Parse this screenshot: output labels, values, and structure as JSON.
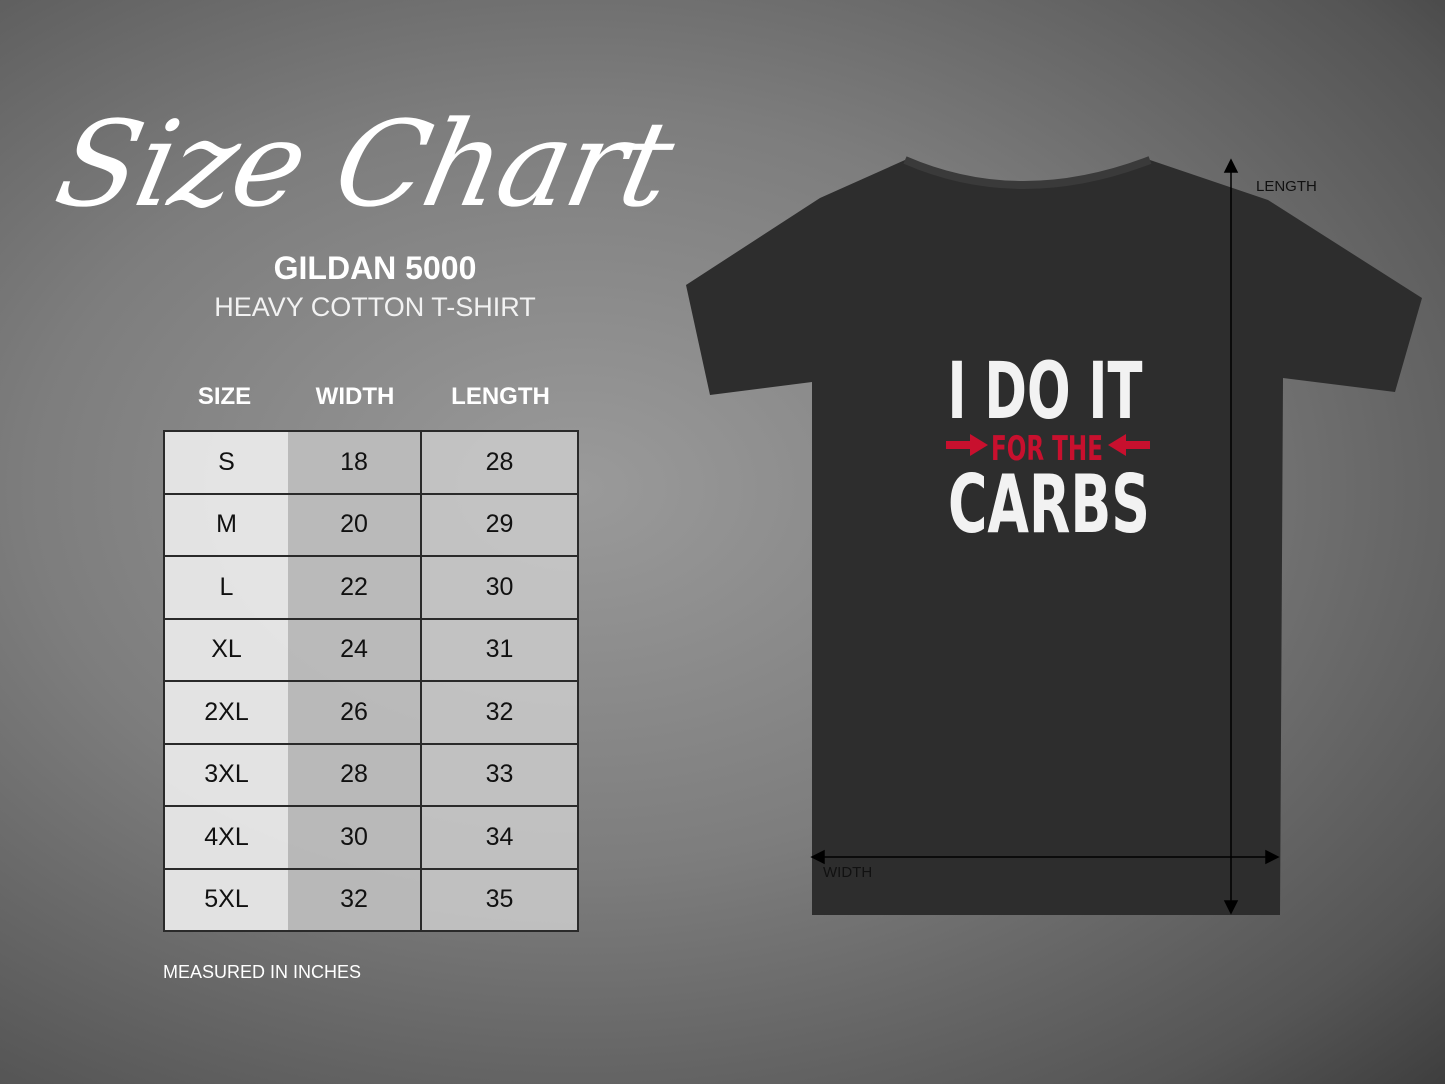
{
  "title": "Size Chart",
  "product": {
    "brand_model": "GILDAN 5000",
    "description": "HEAVY COTTON T-SHIRT"
  },
  "table": {
    "headers": [
      "SIZE",
      "WIDTH",
      "LENGTH"
    ],
    "rows": [
      [
        "S",
        "18",
        "28"
      ],
      [
        "M",
        "20",
        "29"
      ],
      [
        "L",
        "22",
        "30"
      ],
      [
        "XL",
        "24",
        "31"
      ],
      [
        "2XL",
        "26",
        "32"
      ],
      [
        "3XL",
        "28",
        "33"
      ],
      [
        "4XL",
        "30",
        "34"
      ],
      [
        "5XL",
        "32",
        "35"
      ]
    ]
  },
  "note": "MEASURED IN INCHES",
  "shirt": {
    "print_line1": "I DO IT",
    "print_line2": "FOR THE",
    "print_line3": "CARBS",
    "color": "#2d2d2d",
    "accent": "#c8102e"
  },
  "dimension_labels": {
    "length": "LENGTH",
    "width": "WIDTH"
  }
}
